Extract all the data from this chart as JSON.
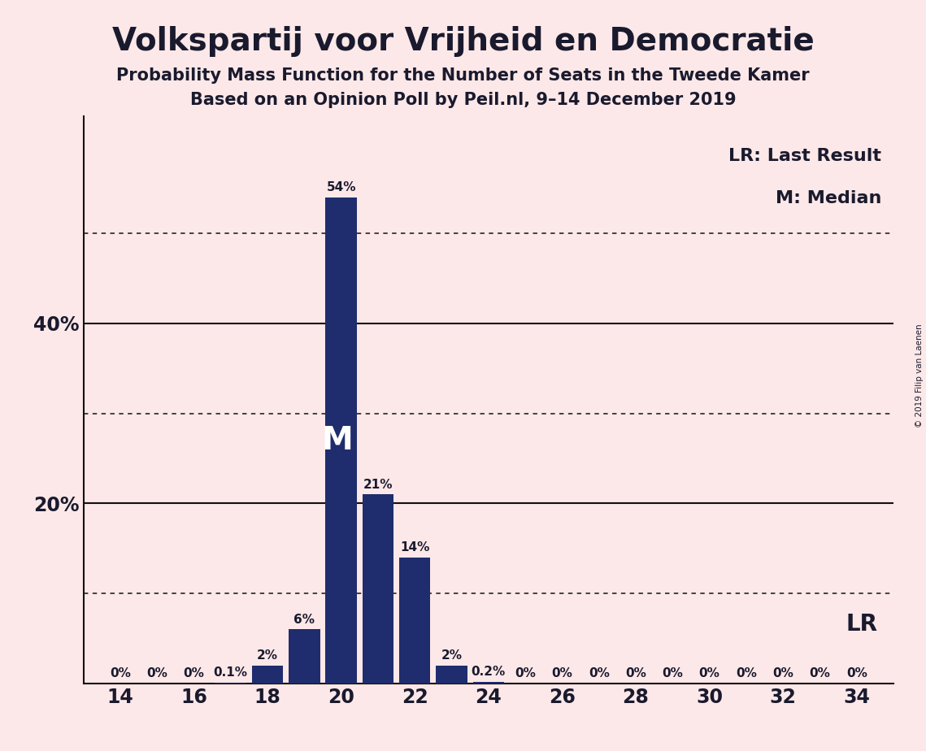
{
  "title": "Volkspartij voor Vrijheid en Democratie",
  "subtitle1": "Probability Mass Function for the Number of Seats in the Tweede Kamer",
  "subtitle2": "Based on an Opinion Poll by Peil.nl, 9–14 December 2019",
  "copyright": "© 2019 Filip van Laenen",
  "seats": [
    14,
    15,
    16,
    17,
    18,
    19,
    20,
    21,
    22,
    23,
    24,
    25,
    26,
    27,
    28,
    29,
    30,
    31,
    32,
    33,
    34
  ],
  "probabilities": [
    0.0,
    0.0,
    0.0,
    0.1,
    2.0,
    6.0,
    54.0,
    21.0,
    14.0,
    2.0,
    0.2,
    0.0,
    0.0,
    0.0,
    0.0,
    0.0,
    0.0,
    0.0,
    0.0,
    0.0,
    0.0
  ],
  "bar_color": "#1f2d6e",
  "background_color": "#fce8e8",
  "median_seat": 20,
  "last_result_seat": 33,
  "legend_lr": "LR: Last Result",
  "legend_m": "M: Median",
  "ylim": [
    0,
    63
  ],
  "xlabel_ticks": [
    14,
    16,
    18,
    20,
    22,
    24,
    26,
    28,
    30,
    32,
    34
  ],
  "xlim": [
    13.0,
    35.0
  ],
  "bar_labels": {
    "14": "0%",
    "15": "0%",
    "16": "0%",
    "17": "0.1%",
    "18": "2%",
    "19": "6%",
    "20": "54%",
    "21": "21%",
    "22": "14%",
    "23": "2%",
    "24": "0.2%",
    "25": "0%",
    "26": "0%",
    "27": "0%",
    "28": "0%",
    "29": "0%",
    "30": "0%",
    "31": "0%",
    "32": "0%",
    "33": "0%",
    "34": "0%"
  },
  "dotted_line_color": "#333333",
  "axis_line_color": "#111111",
  "text_color": "#1a1a2e",
  "grid_lines_dotted": [
    10,
    30,
    50
  ],
  "grid_lines_solid": [
    20,
    40
  ],
  "title_fontsize": 28,
  "subtitle_fontsize": 15,
  "tick_fontsize": 17,
  "bar_label_fontsize": 11,
  "m_label_fontsize": 28,
  "lr_label_fontsize": 20,
  "legend_fontsize": 16
}
